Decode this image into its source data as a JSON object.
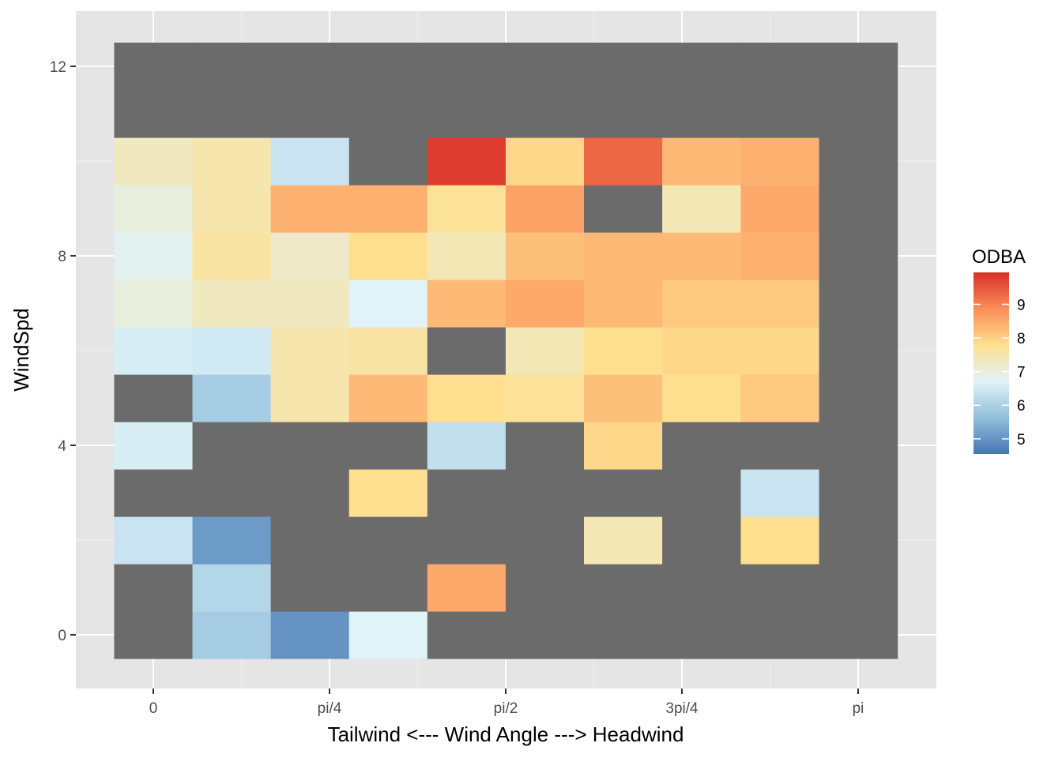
{
  "chart_data": {
    "type": "heatmap",
    "title": "",
    "xlabel": "Tailwind  <---  Wind Angle  --->  Headwind",
    "ylabel": "WindSpd",
    "x_ticks": [
      {
        "value": 0,
        "label": "0"
      },
      {
        "value": 0.7854,
        "label": "pi/4"
      },
      {
        "value": 1.5708,
        "label": "pi/2"
      },
      {
        "value": 2.3562,
        "label": "3pi/4"
      },
      {
        "value": 3.1416,
        "label": "pi"
      }
    ],
    "y_ticks": [
      {
        "value": 0,
        "label": "0"
      },
      {
        "value": 4,
        "label": "4"
      },
      {
        "value": 8,
        "label": "8"
      },
      {
        "value": 12,
        "label": "12"
      }
    ],
    "xlim": [
      -0.35,
      3.14
    ],
    "ylim": [
      -0.5,
      12.5
    ],
    "x_centers": [
      0,
      0.349,
      0.698,
      1.047,
      1.396,
      1.745,
      2.094,
      2.443,
      2.793,
      3.142
    ],
    "y_centers": [
      0,
      1,
      2,
      3,
      4,
      5,
      6,
      7,
      8,
      9,
      10,
      11,
      12
    ],
    "cell_width": 0.349,
    "na_color": "#6b6b6b",
    "values": [
      [
        null,
        5.9,
        5.0,
        6.7,
        null,
        null,
        null,
        null,
        null,
        null
      ],
      [
        null,
        6.1,
        null,
        null,
        8.5,
        null,
        null,
        null,
        null,
        null
      ],
      [
        6.4,
        5.1,
        null,
        null,
        null,
        null,
        7.4,
        null,
        7.8,
        null
      ],
      [
        null,
        null,
        null,
        7.8,
        null,
        null,
        null,
        null,
        6.4,
        null
      ],
      [
        6.6,
        null,
        null,
        null,
        6.3,
        null,
        7.9,
        null,
        null,
        null
      ],
      [
        null,
        5.9,
        7.5,
        8.3,
        7.8,
        7.7,
        8.2,
        7.8,
        8.1,
        null
      ],
      [
        6.6,
        6.5,
        7.5,
        7.6,
        null,
        7.4,
        7.8,
        7.9,
        7.9,
        null
      ],
      [
        7.0,
        7.3,
        7.3,
        6.7,
        8.3,
        8.5,
        8.3,
        8.1,
        8.1,
        null
      ],
      [
        6.8,
        7.6,
        7.2,
        7.8,
        7.4,
        8.2,
        8.3,
        8.3,
        8.4,
        null
      ],
      [
        7.0,
        7.5,
        8.4,
        8.4,
        7.7,
        8.6,
        null,
        7.4,
        8.5,
        null
      ],
      [
        7.3,
        7.5,
        6.4,
        null,
        9.8,
        7.9,
        9.3,
        8.3,
        8.4,
        null
      ],
      [
        null,
        null,
        null,
        null,
        null,
        null,
        null,
        null,
        null,
        null
      ],
      [
        null,
        null,
        null,
        null,
        null,
        null,
        null,
        null,
        null,
        null
      ]
    ],
    "legend": {
      "title": "ODBA",
      "min": 4.55,
      "max": 9.95,
      "ticks": [
        5,
        6,
        7,
        8,
        9
      ],
      "colors": [
        "#4575b4",
        "#91bfdb",
        "#e0f3f8",
        "#fee090",
        "#fc8d59",
        "#d73027"
      ]
    },
    "panel_background": "#e5e5e5",
    "grid": true
  }
}
